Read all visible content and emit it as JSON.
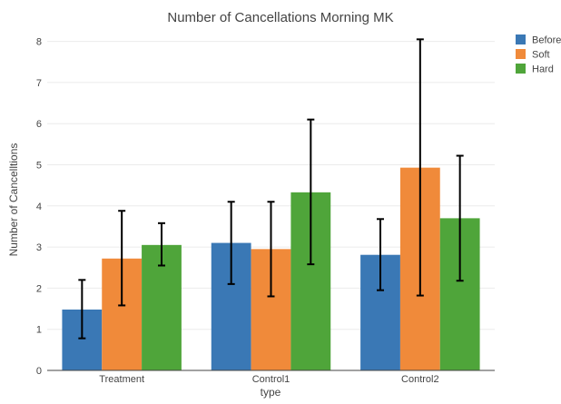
{
  "chart_data": {
    "type": "bar",
    "title": "Number of Cancellations Morning MK",
    "xlabel": "type",
    "ylabel": "Number of Cancelltions",
    "categories": [
      "Treatment",
      "Control1",
      "Control2"
    ],
    "ylim": [
      0,
      8.3
    ],
    "yticks": [
      0,
      1,
      2,
      3,
      4,
      5,
      6,
      7,
      8
    ],
    "grid": true,
    "legend_position": "top-right",
    "series": [
      {
        "name": "Before",
        "color": "#3a78b5",
        "values": [
          1.48,
          3.1,
          2.81
        ],
        "error_low": [
          0.78,
          2.1,
          1.95
        ],
        "error_high": [
          2.2,
          4.1,
          3.68
        ]
      },
      {
        "name": "Soft",
        "color": "#f08a3a",
        "values": [
          2.72,
          2.95,
          4.93
        ],
        "error_low": [
          1.58,
          1.8,
          1.82
        ],
        "error_high": [
          3.88,
          4.1,
          8.05
        ]
      },
      {
        "name": "Hard",
        "color": "#4fa53a",
        "values": [
          3.05,
          4.33,
          3.7
        ],
        "error_low": [
          2.55,
          2.58,
          2.18
        ],
        "error_high": [
          3.58,
          6.1,
          5.22
        ]
      }
    ]
  }
}
